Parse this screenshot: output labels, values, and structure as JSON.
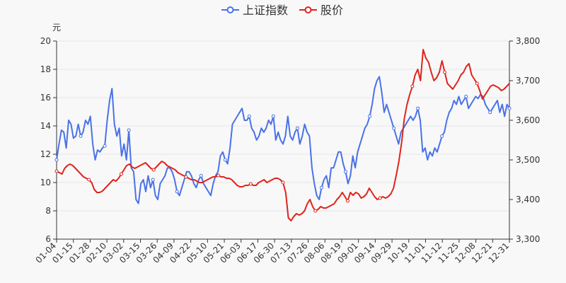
{
  "chart_data": {
    "type": "line",
    "title": "",
    "legend": {
      "position": "top-center",
      "items": [
        "上证指数",
        "股价"
      ]
    },
    "y_left": {
      "unit": "元",
      "min": 6,
      "max": 20,
      "ticks": [
        "6",
        "8",
        "10",
        "12",
        "14",
        "16",
        "18",
        "20"
      ]
    },
    "y_right": {
      "min": 3300,
      "max": 3800,
      "ticks": [
        "3,300",
        "3,400",
        "3,500",
        "3,600",
        "3,700",
        "3,800"
      ]
    },
    "x_tick_labels": [
      "01-04",
      "01-15",
      "01-28",
      "02-10",
      "03-02",
      "03-15",
      "03-26",
      "04-09",
      "04-22",
      "05-10",
      "05-21",
      "06-03",
      "06-17",
      "06-30",
      "07-13",
      "07-26",
      "08-06",
      "08-19",
      "09-01",
      "09-14",
      "09-29",
      "10-19",
      "11-01",
      "11-12",
      "11-25",
      "12-08",
      "12-21",
      "12-31"
    ],
    "series": [
      {
        "name": "上证指数",
        "axis": "right",
        "color": "#4a72e8",
        "values": [
          3500,
          3540,
          3575,
          3570,
          3530,
          3600,
          3590,
          3555,
          3560,
          3590,
          3560,
          3570,
          3600,
          3590,
          3610,
          3540,
          3500,
          3525,
          3520,
          3530,
          3535,
          3600,
          3650,
          3680,
          3590,
          3560,
          3580,
          3510,
          3540,
          3500,
          3575,
          3480,
          3470,
          3400,
          3390,
          3440,
          3450,
          3420,
          3460,
          3430,
          3450,
          3410,
          3400,
          3440,
          3450,
          3460,
          3480,
          3480,
          3470,
          3450,
          3420,
          3410,
          3430,
          3450,
          3470,
          3470,
          3460,
          3440,
          3430,
          3450,
          3460,
          3440,
          3430,
          3420,
          3410,
          3440,
          3460,
          3470,
          3510,
          3520,
          3500,
          3490,
          3530,
          3590,
          3600,
          3610,
          3620,
          3630,
          3600,
          3600,
          3610,
          3580,
          3570,
          3550,
          3560,
          3580,
          3570,
          3580,
          3600,
          3590,
          3610,
          3550,
          3570,
          3550,
          3540,
          3560,
          3610,
          3560,
          3550,
          3570,
          3580,
          3540,
          3560,
          3590,
          3570,
          3560,
          3480,
          3440,
          3410,
          3400,
          3430,
          3450,
          3460,
          3430,
          3480,
          3480,
          3500,
          3520,
          3520,
          3490,
          3470,
          3440,
          3460,
          3510,
          3480,
          3520,
          3540,
          3560,
          3580,
          3590,
          3610,
          3640,
          3680,
          3700,
          3710,
          3670,
          3620,
          3640,
          3620,
          3600,
          3580,
          3560,
          3540,
          3570,
          3580,
          3590,
          3600,
          3610,
          3600,
          3610,
          3630,
          3600,
          3520,
          3530,
          3500,
          3520,
          3510,
          3530,
          3520,
          3540,
          3560,
          3570,
          3600,
          3620,
          3630,
          3650,
          3640,
          3660,
          3640,
          3650,
          3660,
          3630,
          3640,
          3650,
          3660,
          3655,
          3665,
          3660,
          3640,
          3630,
          3620,
          3630,
          3640,
          3650,
          3620,
          3640,
          3610,
          3640,
          3630
        ],
        "point_indices": [
          0,
          10,
          20,
          30,
          40,
          50,
          60,
          70,
          80,
          90,
          100,
          110,
          120,
          130,
          140,
          150,
          160,
          170,
          180,
          190
        ]
      },
      {
        "name": "股价",
        "axis": "left",
        "color": "#e0231c",
        "values": [
          10.8,
          10.7,
          10.6,
          11.0,
          11.2,
          11.3,
          11.2,
          11.0,
          10.8,
          10.6,
          10.4,
          10.3,
          10.2,
          10.0,
          9.5,
          9.3,
          9.3,
          9.4,
          9.6,
          9.8,
          10.0,
          10.2,
          10.1,
          10.3,
          10.6,
          10.9,
          11.2,
          11.3,
          11.1,
          11.0,
          11.1,
          11.2,
          11.3,
          11.4,
          11.2,
          11.0,
          10.9,
          11.1,
          11.3,
          11.5,
          11.4,
          11.2,
          11.1,
          11.0,
          10.9,
          10.7,
          10.6,
          10.5,
          10.4,
          10.3,
          10.2,
          10.2,
          10.1,
          10.0,
          10.0,
          10.1,
          10.2,
          10.3,
          10.4,
          10.4,
          10.5,
          10.4,
          10.4,
          10.3,
          10.3,
          10.2,
          10.0,
          9.8,
          9.7,
          9.7,
          9.8,
          9.8,
          9.9,
          9.8,
          9.8,
          10.0,
          10.1,
          10.2,
          10.0,
          10.1,
          10.2,
          10.3,
          10.3,
          10.2,
          10.0,
          9.3,
          7.5,
          7.3,
          7.6,
          7.8,
          7.7,
          7.8,
          8.0,
          8.5,
          8.8,
          8.3,
          8.0,
          8.1,
          8.3,
          8.2,
          8.2,
          8.3,
          8.4,
          8.5,
          8.8,
          9.0,
          9.3,
          9.0,
          8.7,
          9.3,
          9.1,
          9.3,
          9.2,
          8.9,
          9.0,
          9.2,
          9.6,
          9.3,
          9.0,
          8.8,
          8.9,
          9.0,
          8.9,
          9.0,
          9.2,
          9.6,
          10.5,
          11.5,
          12.8,
          14.5,
          15.5,
          16.2,
          16.8,
          17.6,
          18.0,
          17.2,
          19.4,
          18.8,
          18.5,
          17.8,
          17.2,
          17.4,
          17.8,
          18.6,
          17.8,
          17.0,
          16.8,
          16.6,
          16.9,
          17.2,
          17.6,
          17.8,
          18.2,
          18.4,
          17.6,
          17.3,
          17.0,
          16.5,
          15.9,
          16.2,
          16.5,
          16.8,
          16.9,
          16.8,
          16.7,
          16.5,
          16.6,
          16.8,
          17.0
        ],
        "point_indices": [
          0,
          12,
          24,
          36,
          48,
          60,
          72,
          84,
          96,
          108,
          120,
          132,
          144,
          156
        ]
      }
    ]
  }
}
